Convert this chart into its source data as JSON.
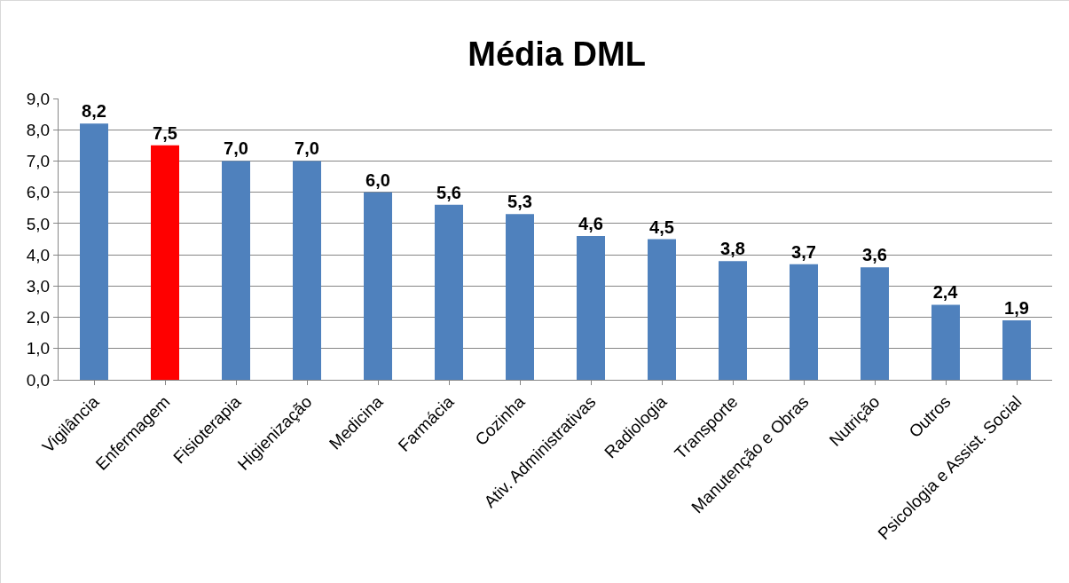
{
  "chart_data": {
    "type": "bar",
    "title": "Média DML",
    "categories": [
      "Vigilância",
      "Enfermagem",
      "Fisioterapia",
      "Higienização",
      "Medicina",
      "Farmácia",
      "Cozinha",
      "Ativ. Administrativas",
      "Radiologia",
      "Transporte",
      "Manutenção e Obras",
      "Nutrição",
      "Outros",
      "Psicologia e Assist. Social"
    ],
    "values": [
      8.2,
      7.5,
      7.0,
      7.0,
      6.0,
      5.6,
      5.3,
      4.6,
      4.5,
      3.8,
      3.7,
      3.6,
      2.4,
      1.9
    ],
    "value_labels": [
      "8,2",
      "7,5",
      "7,0",
      "7,0",
      "6,0",
      "5,6",
      "5,3",
      "4,6",
      "4,5",
      "3,8",
      "3,7",
      "3,6",
      "2,4",
      "1,9"
    ],
    "colors": [
      "#4f81bd",
      "#ff0000",
      "#4f81bd",
      "#4f81bd",
      "#4f81bd",
      "#4f81bd",
      "#4f81bd",
      "#4f81bd",
      "#4f81bd",
      "#4f81bd",
      "#4f81bd",
      "#4f81bd",
      "#4f81bd",
      "#4f81bd"
    ],
    "ylim": [
      0,
      9
    ],
    "yticks": [
      {
        "value": 0,
        "label": "0,0"
      },
      {
        "value": 1,
        "label": "1,0"
      },
      {
        "value": 2,
        "label": "2,0"
      },
      {
        "value": 3,
        "label": "3,0"
      },
      {
        "value": 4,
        "label": "4,0"
      },
      {
        "value": 5,
        "label": "5,0"
      },
      {
        "value": 6,
        "label": "6,0"
      },
      {
        "value": 7,
        "label": "7,0"
      },
      {
        "value": 8,
        "label": "8,0"
      },
      {
        "value": 9,
        "label": "9,0"
      }
    ],
    "grid": "y",
    "legend": false
  }
}
